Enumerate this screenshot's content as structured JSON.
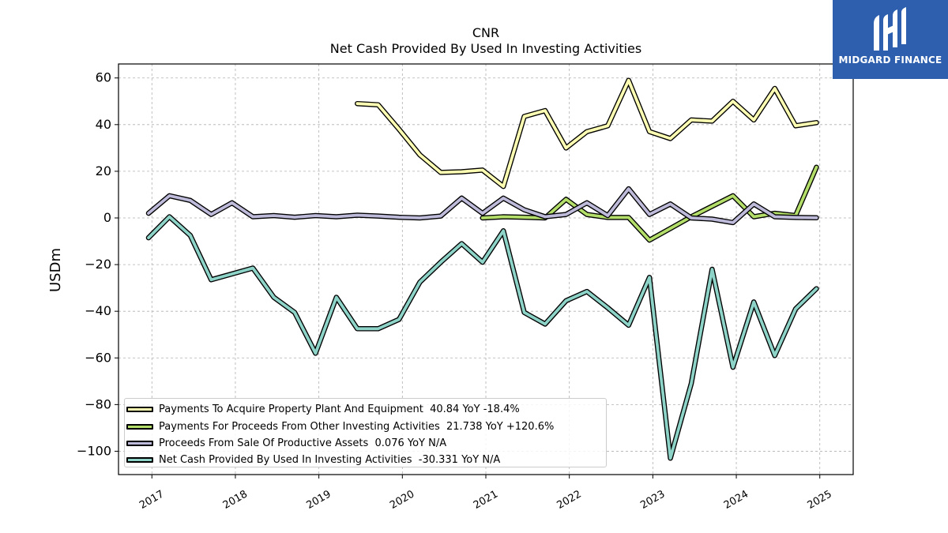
{
  "brand": {
    "name": "MIDGARD FINANCE",
    "bg_color": "#2d5fae"
  },
  "chart_data": {
    "type": "line",
    "title": "CNR",
    "subtitle": "Net Cash Provided By Used In Investing Activities",
    "xlabel": "",
    "ylabel": "USDm",
    "ylim": [
      -110,
      66
    ],
    "yticks": [
      -100,
      -80,
      -60,
      -40,
      -20,
      0,
      20,
      40,
      60
    ],
    "ytick_labels": [
      "−100",
      "−80",
      "−60",
      "−40",
      "−20",
      "0",
      "20",
      "40",
      "60"
    ],
    "xlim": [
      2016.6,
      2025.4
    ],
    "xticks": [
      2017,
      2018,
      2019,
      2020,
      2021,
      2022,
      2023,
      2024,
      2025
    ],
    "xtick_labels": [
      "2017",
      "2018",
      "2019",
      "2020",
      "2021",
      "2022",
      "2023",
      "2024",
      "2025"
    ],
    "grid": true,
    "legend_position": "lower-left",
    "x": [
      2016.96,
      2017.21,
      2017.46,
      2017.71,
      2017.96,
      2018.21,
      2018.46,
      2018.71,
      2018.96,
      2019.21,
      2019.46,
      2019.71,
      2019.96,
      2020.21,
      2020.46,
      2020.71,
      2020.96,
      2021.21,
      2021.46,
      2021.71,
      2021.96,
      2022.21,
      2022.46,
      2022.71,
      2022.96,
      2023.21,
      2023.46,
      2023.71,
      2023.96,
      2024.21,
      2024.46,
      2024.71,
      2024.96
    ],
    "series": [
      {
        "name": "Payments To Acquire Property Plant And Equipment",
        "legend_label": "Payments To Acquire Property Plant And Equipment  40.84 YoY -18.4%",
        "color": "#ffffb3",
        "values": [
          null,
          null,
          null,
          null,
          null,
          null,
          null,
          null,
          null,
          null,
          49,
          48.5,
          38,
          27,
          19.5,
          19.8,
          20.5,
          13.5,
          43.5,
          46,
          30,
          37,
          39.5,
          59,
          37,
          34,
          42,
          41.5,
          50,
          42,
          55.5,
          39.5,
          40.84
        ]
      },
      {
        "name": "Payments For Proceeds From Other Investing Activities",
        "legend_label": "Payments For Proceeds From Other Investing Activities  21.738 YoY +120.6%",
        "color": "#b3de69",
        "values": [
          null,
          null,
          null,
          null,
          null,
          null,
          null,
          null,
          null,
          null,
          null,
          null,
          null,
          null,
          null,
          null,
          0,
          0.5,
          0.3,
          0,
          8,
          1.5,
          0.2,
          0.2,
          -9.5,
          -4.5,
          0.5,
          5,
          9.5,
          0.5,
          2,
          1,
          21.738
        ]
      },
      {
        "name": "Proceeds From Sale Of Productive Assets",
        "legend_label": "Proceeds From Sale Of Productive Assets  0.076 YoY N/A",
        "color": "#bebada",
        "values": [
          2,
          9.5,
          7.5,
          1.5,
          6.5,
          0.5,
          1,
          0.3,
          1,
          0.5,
          1.2,
          0.8,
          0.3,
          0,
          0.8,
          8.5,
          2,
          8.5,
          3.5,
          0.5,
          1.5,
          6.5,
          1,
          12.5,
          1.5,
          6,
          0,
          -0.5,
          -2,
          6,
          0.5,
          0.2,
          0.076
        ]
      },
      {
        "name": "Net Cash Provided By Used In Investing Activities",
        "legend_label": "Net Cash Provided By Used In Investing Activities  -30.331 YoY N/A",
        "color": "#8dd3c7",
        "values": [
          -8.5,
          0.5,
          -7.5,
          -26.5,
          -24,
          -21.5,
          -34,
          -40.5,
          -58,
          -34,
          -47.5,
          -47.5,
          -43.5,
          -27.5,
          -19,
          -11,
          -19,
          -5.5,
          -40.5,
          -45.5,
          -35.5,
          -31.5,
          -38.5,
          -46,
          -25.5,
          -103,
          -71,
          -22,
          -64,
          -36,
          -59,
          -39,
          -30.331
        ]
      }
    ]
  }
}
